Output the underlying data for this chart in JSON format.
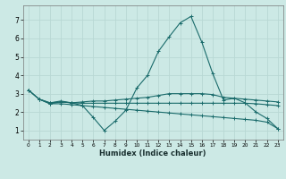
{
  "xlabel": "Humidex (Indice chaleur)",
  "xlim": [
    -0.5,
    23.5
  ],
  "ylim": [
    0.5,
    7.8
  ],
  "xticks": [
    0,
    1,
    2,
    3,
    4,
    5,
    6,
    7,
    8,
    9,
    10,
    11,
    12,
    13,
    14,
    15,
    16,
    17,
    18,
    19,
    20,
    21,
    22,
    23
  ],
  "yticks": [
    1,
    2,
    3,
    4,
    5,
    6,
    7
  ],
  "background_color": "#cce9e5",
  "grid_color": "#b8d8d4",
  "line_color": "#1a6b6b",
  "series": [
    {
      "x": [
        0,
        1,
        2,
        3,
        4,
        5,
        6,
        7,
        8,
        9,
        10,
        11,
        12,
        13,
        14,
        15,
        16,
        17,
        18,
        19,
        20,
        21,
        22,
        23
      ],
      "y": [
        3.2,
        2.7,
        2.5,
        2.6,
        2.5,
        2.35,
        1.7,
        1.0,
        1.5,
        2.1,
        3.3,
        4.0,
        5.3,
        6.1,
        6.85,
        7.2,
        5.8,
        4.1,
        2.65,
        2.75,
        2.5,
        2.0,
        1.65,
        1.1
      ]
    },
    {
      "x": [
        0,
        1,
        2,
        3,
        4,
        5,
        6,
        7,
        8,
        9,
        10,
        11,
        12,
        13,
        14,
        15,
        16,
        17,
        18,
        19,
        20,
        21,
        22,
        23
      ],
      "y": [
        3.2,
        2.7,
        2.5,
        2.55,
        2.5,
        2.55,
        2.6,
        2.6,
        2.65,
        2.7,
        2.75,
        2.8,
        2.9,
        3.0,
        3.0,
        3.0,
        3.0,
        2.95,
        2.8,
        2.75,
        2.7,
        2.65,
        2.6,
        2.55
      ]
    },
    {
      "x": [
        1,
        2,
        3,
        4,
        5,
        6,
        7,
        8,
        9,
        10,
        11,
        12,
        13,
        14,
        15,
        16,
        17,
        18,
        19,
        20,
        21,
        22,
        23
      ],
      "y": [
        2.7,
        2.45,
        2.55,
        2.5,
        2.48,
        2.48,
        2.48,
        2.48,
        2.48,
        2.48,
        2.48,
        2.48,
        2.48,
        2.48,
        2.48,
        2.48,
        2.48,
        2.48,
        2.48,
        2.48,
        2.45,
        2.4,
        2.35
      ]
    },
    {
      "x": [
        0,
        1,
        2,
        3,
        4,
        5,
        6,
        7,
        8,
        9,
        10,
        11,
        12,
        13,
        14,
        15,
        16,
        17,
        18,
        19,
        20,
        21,
        22,
        23
      ],
      "y": [
        3.2,
        2.7,
        2.45,
        2.45,
        2.4,
        2.35,
        2.3,
        2.25,
        2.2,
        2.15,
        2.1,
        2.05,
        2.0,
        1.95,
        1.9,
        1.85,
        1.8,
        1.75,
        1.7,
        1.65,
        1.6,
        1.55,
        1.45,
        1.1
      ]
    }
  ]
}
